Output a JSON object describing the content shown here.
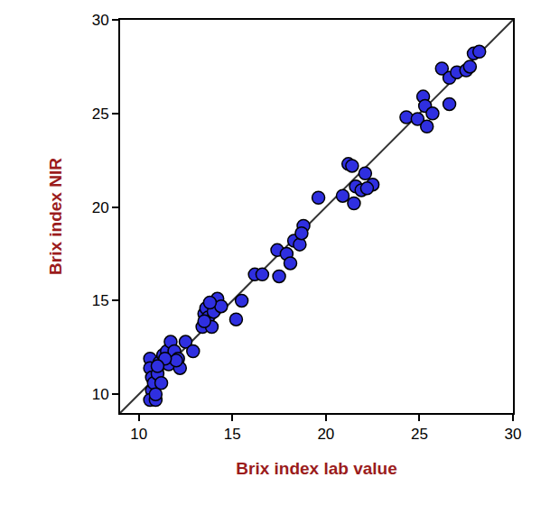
{
  "chart_data": {
    "type": "scatter",
    "x_label": "Brix index lab value",
    "y_label": "Brix index NIR",
    "marker": "circle",
    "color": "#2f2fe0",
    "grid": false,
    "xlim": [
      9,
      30
    ],
    "xticks": [
      10,
      15,
      20,
      25,
      30
    ],
    "ylim": [
      9,
      30
    ],
    "yticks": [
      10,
      15,
      20,
      25,
      30
    ],
    "x": [
      10.6,
      10.6,
      10.7,
      10.7,
      10.6,
      10.9,
      10.8,
      11.0,
      11.1,
      11.2,
      11.3,
      11.5,
      11.7,
      11.6,
      11.9,
      12.1,
      12.2,
      12.5,
      12.9,
      12.0,
      11.4,
      10.9,
      11.0,
      13.4,
      13.5,
      13.6,
      13.7,
      13.9,
      14.0,
      14.2,
      14.4,
      13.8,
      13.5,
      15.2,
      15.5,
      16.2,
      16.6,
      17.4,
      17.5,
      17.9,
      18.1,
      18.3,
      18.6,
      18.8,
      18.7,
      19.6,
      20.9,
      21.2,
      21.4,
      21.5,
      21.6,
      21.9,
      22.1,
      22.5,
      22.2,
      24.3,
      24.9,
      25.2,
      25.3,
      25.4,
      25.7,
      26.2,
      26.6,
      26.6,
      27.0,
      27.5,
      27.7,
      27.9,
      28.2
    ],
    "values": [
      11.9,
      11.4,
      10.9,
      10.2,
      9.7,
      9.7,
      10.6,
      11.1,
      11.7,
      10.6,
      12.1,
      12.3,
      12.8,
      11.6,
      12.3,
      11.9,
      11.4,
      12.8,
      12.3,
      11.8,
      11.9,
      10.0,
      11.5,
      13.6,
      14.3,
      14.6,
      14.1,
      13.6,
      14.4,
      15.1,
      14.7,
      14.9,
      13.9,
      14.0,
      15.0,
      16.4,
      16.4,
      17.7,
      16.3,
      17.5,
      17.0,
      18.2,
      18.0,
      19.0,
      18.6,
      20.5,
      20.6,
      22.3,
      22.2,
      20.2,
      21.1,
      20.9,
      21.8,
      21.2,
      21.0,
      24.8,
      24.7,
      25.9,
      25.4,
      24.3,
      25.0,
      27.4,
      25.5,
      26.9,
      27.2,
      27.3,
      27.5,
      28.2,
      28.3
    ]
  }
}
